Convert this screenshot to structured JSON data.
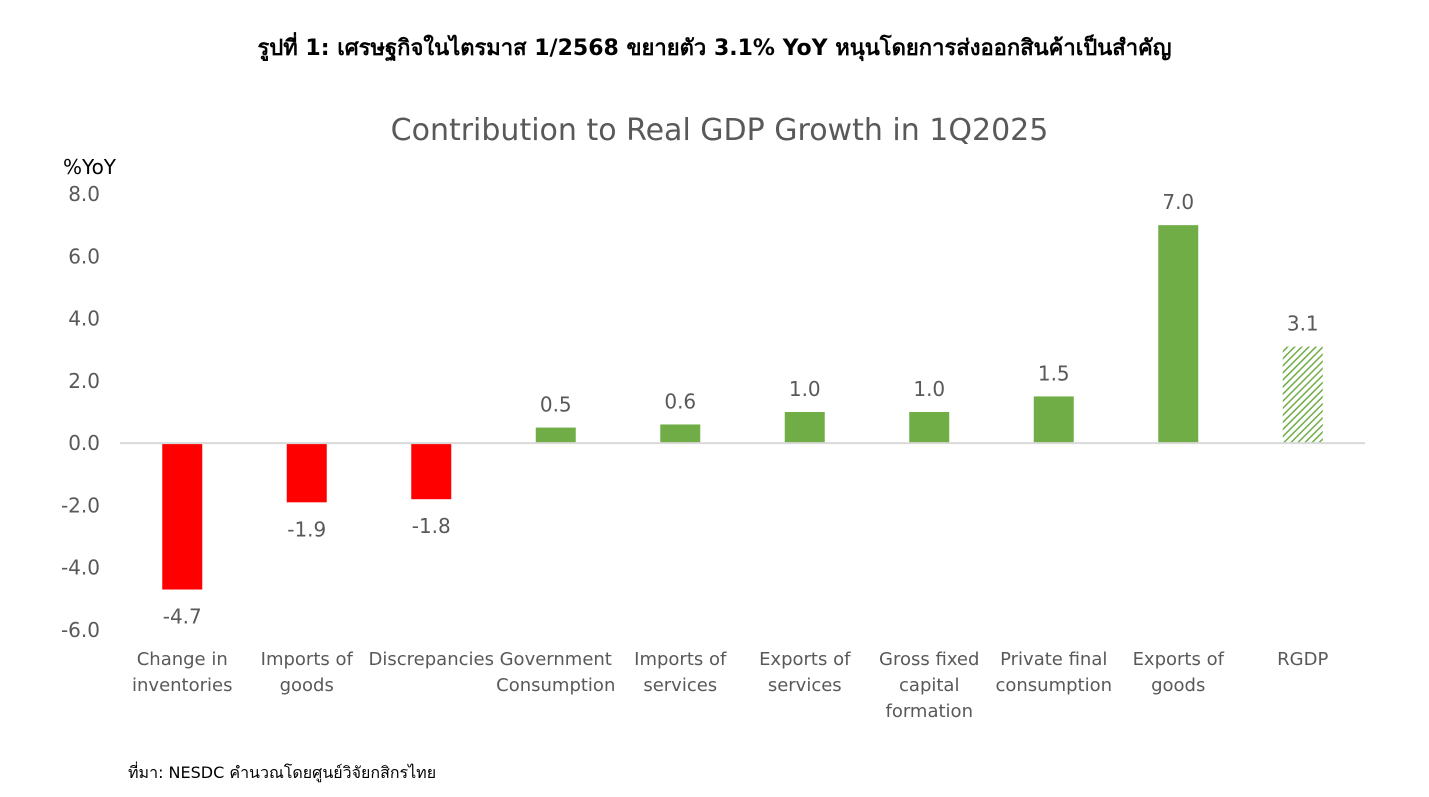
{
  "figure_caption": "รูปที่ 1: เศรษฐกิจในไตรมาส 1/2568 ขยายตัว 3.1% YoY หนุนโดยการส่งออกสินค้าเป็นสำคัญ",
  "source_note": "ที่มา: NESDC คำนวณโดยศูนย์วิจัยกสิกรไทย",
  "colors": {
    "negative": "#ff0000",
    "positive": "#70ad47",
    "total_hatch": "#70ad47",
    "axis_text": "#595959",
    "zero_line": "#d9d9d9"
  },
  "chart_data": {
    "type": "bar",
    "title": "Contribution to Real GDP Growth in 1Q2025",
    "ylabel": "%YoY",
    "xlabel": "",
    "ylim": [
      -6,
      8
    ],
    "yticks": [
      "8.0",
      "6.0",
      "4.0",
      "2.0",
      "0.0",
      "-2.0",
      "-4.0",
      "-6.0"
    ],
    "grid": false,
    "legend": "none",
    "categories": [
      [
        "Change in",
        "inventories"
      ],
      [
        "Imports of",
        "goods"
      ],
      [
        "Discrepancies"
      ],
      [
        "Government",
        "Consumption"
      ],
      [
        "Imports of",
        "services"
      ],
      [
        "Exports of",
        "services"
      ],
      [
        "Gross fixed",
        "capital",
        "formation"
      ],
      [
        "Private final",
        "consumption"
      ],
      [
        "Exports of",
        "goods"
      ],
      [
        "RGDP"
      ]
    ],
    "values": [
      -4.7,
      -1.9,
      -1.8,
      0.5,
      0.6,
      1.0,
      1.0,
      1.5,
      7.0,
      3.1
    ],
    "value_labels": [
      "-4.7",
      "-1.9",
      "-1.8",
      "0.5",
      "0.6",
      "1.0",
      "1.0",
      "1.5",
      "7.0",
      "3.1"
    ],
    "total_index": 9
  }
}
